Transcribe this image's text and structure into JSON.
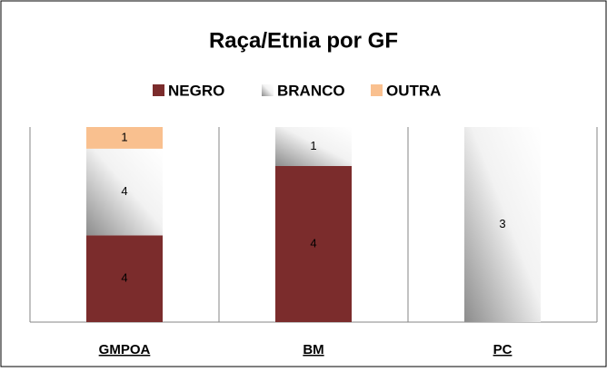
{
  "chart_data": {
    "type": "bar",
    "stack": "percent",
    "title": "Raça/Etnia por GF",
    "categories": [
      "GMPOA",
      "BM",
      "PC"
    ],
    "series": [
      {
        "name": "NEGRO",
        "color": "#7b2c2c",
        "values": [
          4,
          4,
          null
        ]
      },
      {
        "name": "BRANCO",
        "color": "#8c8c8c",
        "gradient": true,
        "values": [
          4,
          1,
          3
        ]
      },
      {
        "name": "OUTRA",
        "color": "#f9c08f",
        "values": [
          1,
          null,
          null
        ]
      }
    ]
  }
}
